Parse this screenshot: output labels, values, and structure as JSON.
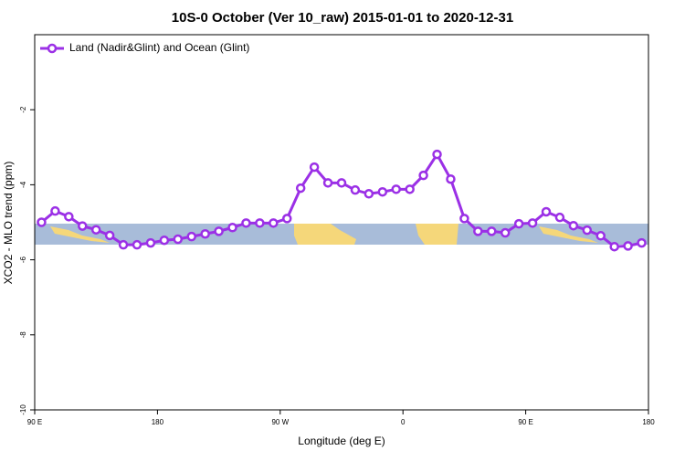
{
  "chart_data": {
    "type": "line",
    "title": "10S-0 October (Ver 10_raw)   2015-01-01 to 2020-12-31",
    "x_label": "Longitude (deg E)",
    "y_label": "XCO2 - MLO trend (ppm)",
    "x": [
      95,
      105,
      115,
      125,
      135,
      145,
      155,
      165,
      175,
      185,
      195,
      205,
      215,
      225,
      235,
      245,
      255,
      265,
      275,
      285,
      295,
      305,
      315,
      325,
      335,
      345,
      355,
      365,
      375,
      385,
      395,
      405,
      415,
      425,
      435,
      445,
      455,
      465,
      475,
      485,
      495,
      505,
      515,
      525,
      535
    ],
    "series": [
      {
        "name": "Land (Nadir&Glint) and Ocean (Glint)",
        "color": "#9b30e6",
        "values": [
          -5.0,
          -4.7,
          -4.85,
          -5.1,
          -5.2,
          -5.35,
          -5.6,
          -5.6,
          -5.55,
          -5.48,
          -5.45,
          -5.38,
          -5.31,
          -5.24,
          -5.14,
          -5.02,
          -5.02,
          -5.02,
          -4.9,
          -4.09,
          -3.53,
          -3.95,
          -3.95,
          -4.14,
          -4.24,
          -4.19,
          -4.12,
          -4.12,
          -3.75,
          -3.19,
          -3.85,
          -4.9,
          -5.24,
          -5.24,
          -5.28,
          -5.04,
          -5.02,
          -4.72,
          -4.87,
          -5.09,
          -5.21,
          -5.36,
          -5.65,
          -5.63,
          -5.55
        ]
      }
    ],
    "xlim": [
      90,
      540
    ],
    "xticks": [
      {
        "value": 90,
        "label": "90 E"
      },
      {
        "value": 180,
        "label": "180"
      },
      {
        "value": 270,
        "label": "90 W"
      },
      {
        "value": 360,
        "label": "0"
      },
      {
        "value": 450,
        "label": "90 E"
      },
      {
        "value": 540,
        "label": "180"
      }
    ],
    "ylim": [
      -10,
      0
    ],
    "yticks": [
      -10,
      -8,
      -6,
      -4,
      -2
    ],
    "legend": "top-left"
  }
}
